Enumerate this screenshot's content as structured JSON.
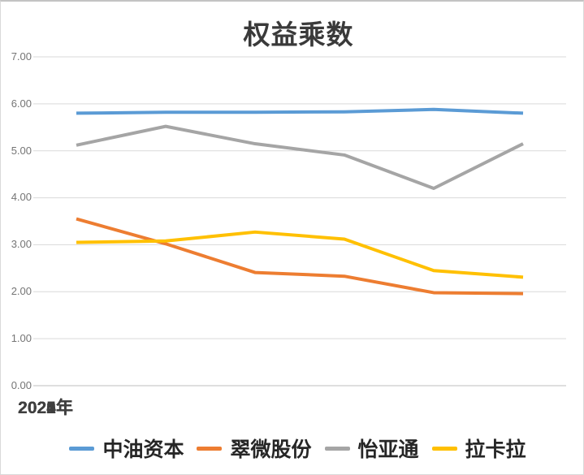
{
  "window": {
    "background": "#ffffff",
    "border_color": "#d9d9d9"
  },
  "chart_data": {
    "type": "line",
    "title": "权益乘数",
    "categories": [
      "2025年",
      "2024年",
      "2023年",
      "2022年",
      "2021年",
      "2020年"
    ],
    "series": [
      {
        "name": "中油资本",
        "color": "#5B9BD5",
        "values": [
          5.8,
          5.82,
          5.82,
          5.83,
          5.88,
          5.8
        ]
      },
      {
        "name": "翠微股份",
        "color": "#ED7D31",
        "values": [
          3.55,
          3.02,
          2.41,
          2.33,
          1.98,
          1.96
        ]
      },
      {
        "name": "怡亚通",
        "color": "#A5A5A5",
        "values": [
          5.12,
          5.52,
          5.15,
          4.91,
          4.2,
          5.15
        ]
      },
      {
        "name": "拉卡拉",
        "color": "#FFC000",
        "values": [
          3.05,
          3.08,
          3.27,
          3.12,
          2.45,
          2.31
        ]
      }
    ],
    "ylim": [
      0,
      7
    ],
    "ytick_step": 1,
    "yticks": [
      "7.00",
      "6.00",
      "5.00",
      "4.00",
      "3.00",
      "2.00",
      "1.00",
      "0.00"
    ],
    "xlabel": "",
    "ylabel": "",
    "grid": "horizontal",
    "gridline_color": "#D9D9D9",
    "axis_line_color": "#BFBFBF",
    "legend_position": "bottom"
  }
}
